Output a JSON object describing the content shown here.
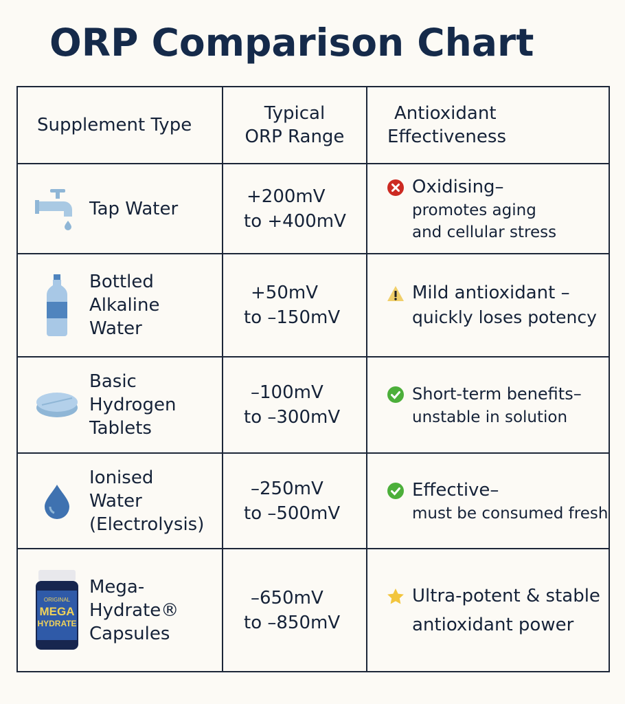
{
  "title": "ORP Comparison Chart",
  "headers": [
    "Supplement Type",
    "Typical ORP Range",
    "Antioxidant Effectiveness"
  ],
  "header_lines": {
    "range": [
      "Typical",
      "ORP Range"
    ],
    "effect": [
      "Antioxidant",
      "Effectiveness"
    ]
  },
  "rows": [
    {
      "icon": "faucet-icon",
      "name": [
        "Tap Water"
      ],
      "range": [
        "+200mV",
        "to +400mV"
      ],
      "status": "error-x-icon",
      "status_color": "#cc2a22",
      "effect": [
        "Oxidising–",
        "promotes aging",
        "and cellular stress"
      ]
    },
    {
      "icon": "water-bottle-icon",
      "name": [
        "Bottled",
        "Alkaline",
        "Water"
      ],
      "range": [
        "+50mV",
        "to –150mV"
      ],
      "status": "warning-icon",
      "status_color": "#f0cf6a",
      "effect": [
        "Mild antioxidant –",
        "quickly loses potency"
      ]
    },
    {
      "icon": "tablet-icon",
      "name": [
        "Basic",
        "Hydrogen",
        "Tablets"
      ],
      "range": [
        "–100mV",
        "to –300mV"
      ],
      "status": "check-icon",
      "status_color": "#4caf3a",
      "effect": [
        "Short-term benefits–",
        "unstable in solution"
      ]
    },
    {
      "icon": "water-drop-icon",
      "name": [
        "Ionised",
        "Water",
        "(Electrolysis)"
      ],
      "range": [
        "–250mV",
        "to –500mV"
      ],
      "status": "check-icon",
      "status_color": "#4caf3a",
      "effect": [
        "Effective–",
        "must be consumed fresh"
      ]
    },
    {
      "icon": "capsule-bottle-icon",
      "name": [
        "Mega-",
        "Hydrate®",
        "Capsules"
      ],
      "range": [
        "–650mV",
        "to –850mV"
      ],
      "status": "star-icon",
      "status_color": "#f2c53d",
      "effect": [
        "Ultra-potent & stable",
        "antioxidant power"
      ]
    }
  ],
  "product_logo": {
    "line1": "ORIGINAL",
    "line2": "MEGA",
    "line3": "HYDRATE"
  }
}
